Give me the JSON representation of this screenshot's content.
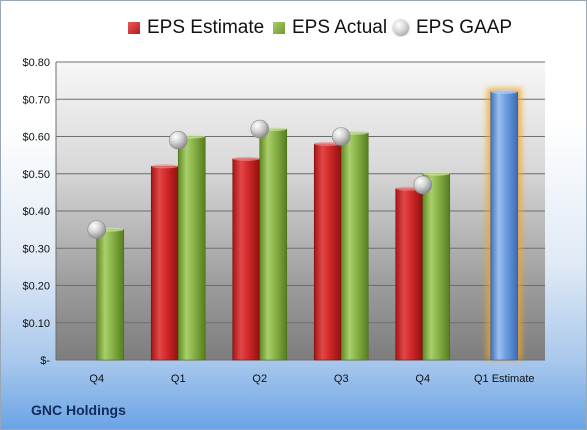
{
  "legend": {
    "estimate": "EPS Estimate",
    "actual": "EPS Actual",
    "gaap": "EPS GAAP"
  },
  "company": "GNC Holdings",
  "colors": {
    "estimate": "#c62828",
    "actual": "#7fa83a",
    "gaap": "#bdbdbd",
    "forecast": "#5b8fd6",
    "forecast_glow": "#f5a623"
  },
  "chart_data": {
    "type": "bar",
    "categories": [
      "Q4",
      "Q1",
      "Q2",
      "Q3",
      "Q4",
      "Q1 Estimate"
    ],
    "series": [
      {
        "name": "EPS Estimate",
        "values": [
          null,
          0.52,
          0.54,
          0.58,
          0.46,
          0.72
        ]
      },
      {
        "name": "EPS Actual",
        "values": [
          0.35,
          0.6,
          0.62,
          0.61,
          0.5,
          null
        ]
      },
      {
        "name": "EPS GAAP",
        "values": [
          0.35,
          0.59,
          0.62,
          0.6,
          0.47,
          null
        ]
      }
    ],
    "ylim": [
      0,
      0.8
    ],
    "yticks": [
      0,
      0.1,
      0.2,
      0.3,
      0.4,
      0.5,
      0.6,
      0.7,
      0.8
    ],
    "ytick_labels": [
      "$-",
      "$0.10",
      "$0.20",
      "$0.30",
      "$0.40",
      "$0.50",
      "$0.60",
      "$0.70",
      "$0.80"
    ],
    "grid": true,
    "legend_position": "top"
  }
}
